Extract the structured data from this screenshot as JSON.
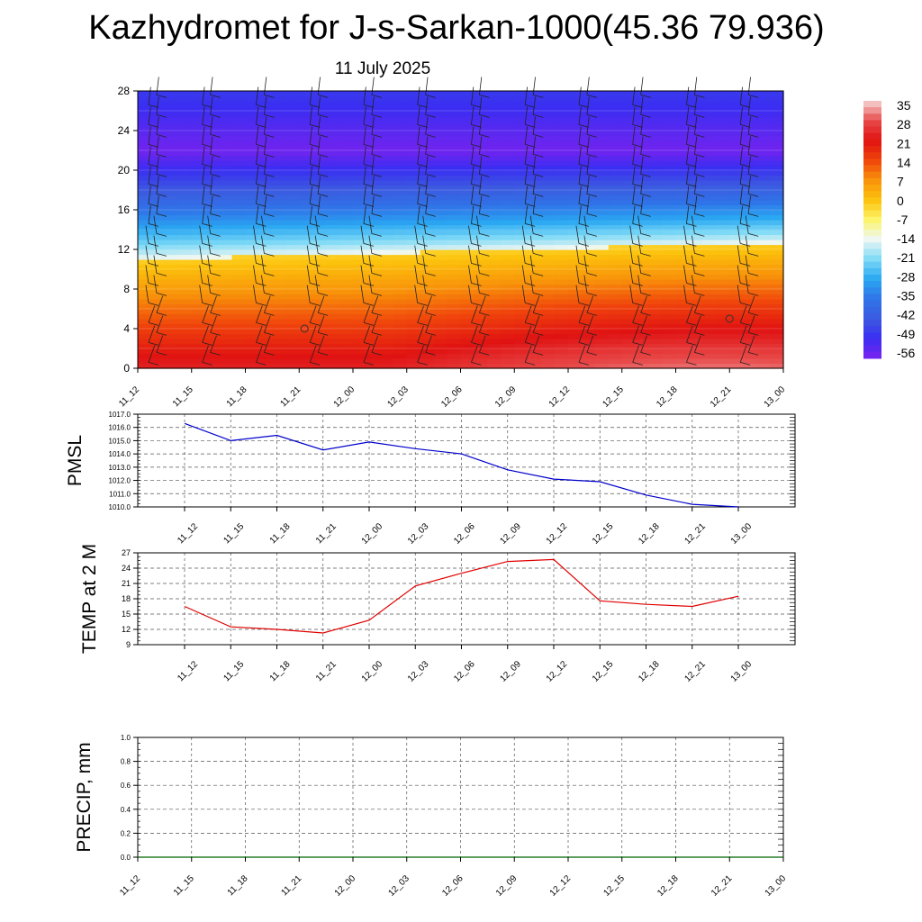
{
  "page": {
    "title": "Kazhydromet for J-s-Sarkan-1000(45.36 79.936)",
    "subtitle": "11 July 2025"
  },
  "colors": {
    "pmsl_line": "#0000cc",
    "temp_line": "#e00000",
    "precip_line": "#006400",
    "grid": "#000000"
  },
  "chart_data": [
    {
      "id": "crosssection",
      "type": "heatmap",
      "description_of_content": "time-height cross section with wind barbs",
      "x": [
        "11_12",
        "11_15",
        "11_18",
        "11_21",
        "12_00",
        "12_03",
        "12_06",
        "12_09",
        "12_12",
        "12_15",
        "12_18",
        "12_21",
        "13_00"
      ],
      "y_ticks": [
        0,
        4,
        8,
        12,
        16,
        20,
        24,
        28
      ],
      "ylim": [
        0,
        28
      ],
      "colorbar": {
        "labels": [
          "35",
          "28",
          "21",
          "14",
          "7",
          "0",
          "-7",
          "-14",
          "-21",
          "-28",
          "-35",
          "-42",
          "-49",
          "-56"
        ],
        "stops": [
          {
            "v": 35,
            "c": "#f6d6d6"
          },
          {
            "v": 28,
            "c": "#e84a4a"
          },
          {
            "v": 21,
            "c": "#e01212"
          },
          {
            "v": 14,
            "c": "#f0440c"
          },
          {
            "v": 7,
            "c": "#f8920a"
          },
          {
            "v": 0,
            "c": "#fcc20c"
          },
          {
            "v": -7,
            "c": "#fdf46a"
          },
          {
            "v": -14,
            "c": "#eef7f3"
          },
          {
            "v": -21,
            "c": "#7fdaf6"
          },
          {
            "v": -28,
            "c": "#2aa8f2"
          },
          {
            "v": -35,
            "c": "#2f74e8"
          },
          {
            "v": -42,
            "c": "#3c5ae0"
          },
          {
            "v": -49,
            "c": "#3a2ef2"
          },
          {
            "v": -56,
            "c": "#7a22ee"
          }
        ]
      },
      "markers": [
        {
          "t": 3.1,
          "h": 4.0
        },
        {
          "t": 11.0,
          "h": 5.0
        }
      ]
    },
    {
      "id": "pmsl",
      "type": "line",
      "ylabel": "PMSL",
      "x": [
        "11_12",
        "11_15",
        "11_18",
        "11_21",
        "12_00",
        "12_03",
        "12_06",
        "12_09",
        "12_12",
        "12_15",
        "12_18",
        "12_21",
        "13_00"
      ],
      "y_ticks": [
        "1010.0",
        "1011.0",
        "1012.0",
        "1013.0",
        "1014.0",
        "1015.0",
        "1016.0",
        "1017.0"
      ],
      "ylim": [
        1010,
        1017
      ],
      "series": [
        {
          "values": [
            1016.3,
            1015.0,
            1015.4,
            1014.3,
            1014.9,
            1014.4,
            1014.0,
            1012.8,
            1012.1,
            1011.9,
            1010.9,
            1010.2,
            1010.0
          ]
        }
      ]
    },
    {
      "id": "temp",
      "type": "line",
      "ylabel": "TEMP at 2 M",
      "x": [
        "11_12",
        "11_15",
        "11_18",
        "11_21",
        "12_00",
        "12_03",
        "12_06",
        "12_09",
        "12_12",
        "12_15",
        "12_18",
        "12_21",
        "13_00"
      ],
      "y_ticks": [
        "9",
        "12",
        "15",
        "18",
        "21",
        "24",
        "27"
      ],
      "ylim": [
        9,
        27
      ],
      "series": [
        {
          "values": [
            16.5,
            12.5,
            12.0,
            11.3,
            13.8,
            20.5,
            23.0,
            25.3,
            25.7,
            17.6,
            16.9,
            16.5,
            18.5
          ]
        }
      ]
    },
    {
      "id": "precip",
      "type": "line",
      "ylabel": "PRECIP, mm",
      "x": [
        "11_12",
        "11_15",
        "11_18",
        "11_21",
        "12_00",
        "12_03",
        "12_06",
        "12_09",
        "12_12",
        "12_15",
        "12_18",
        "12_21",
        "13_00"
      ],
      "y_ticks": [
        "0.0",
        "0.2",
        "0.4",
        "0.6",
        "0.8",
        "1.0"
      ],
      "ylim": [
        0,
        1
      ],
      "series": [
        {
          "values": [
            0,
            0,
            0,
            0,
            0,
            0,
            0,
            0,
            0,
            0,
            0,
            0,
            0
          ]
        }
      ]
    }
  ]
}
